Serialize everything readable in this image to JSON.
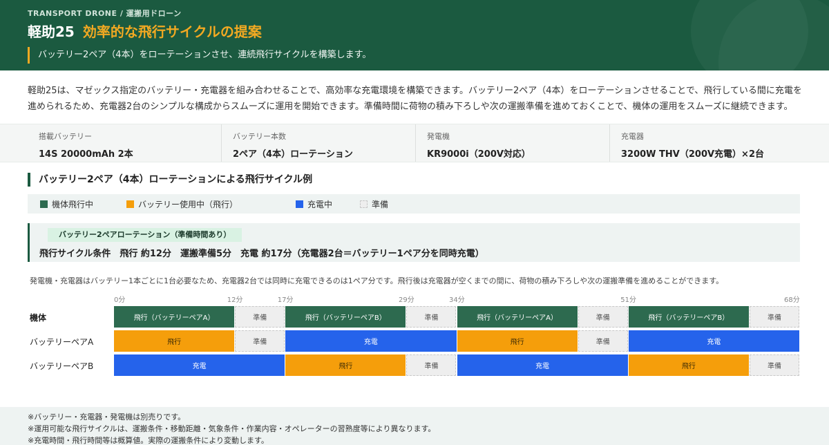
{
  "header": {
    "eyebrow": "TRANSPORT DRONE / 運搬用ドローン",
    "model": "軽助25",
    "headline": "効率的な飛行サイクルの提案",
    "subtitle": "バッテリー2ペア（4本）をローテーションさせ、連続飛行サイクルを構築します。"
  },
  "intro": {
    "text": "軽助25は、マゼックス指定のバッテリー・充電器を組み合わせることで、高効率な充電環境を構築できます。バッテリー2ペア（4本）をローテーションさせることで、飛行している間に充電を進められるため、充電器2台のシンプルな構成からスムーズに運用を開始できます。準備時間に荷物の積み下ろしや次の運搬準備を進めておくことで、機体の運用をスムーズに継続できます。"
  },
  "specs": [
    {
      "label": "搭載バッテリー",
      "value": "14S 20000mAh  2本"
    },
    {
      "label": "バッテリー本数",
      "value": "2ペア（4本）ローテーション"
    },
    {
      "label": "発電機",
      "value": "KR9000i（200V対応）"
    },
    {
      "label": "充電器",
      "value": "3200W THV（200V充電）×2台"
    }
  ],
  "section": {
    "title": "バッテリー2ペア（4本）ローテーションによる飛行サイクル例"
  },
  "legend": [
    {
      "label": "機体飛行中",
      "color": "#2d6a4f"
    },
    {
      "label": "バッテリー使用中（飛行）",
      "color": "#f59e0b"
    },
    {
      "label": "充電中",
      "color": "#2563eb"
    },
    {
      "label": "準備",
      "color": "#eeeeee"
    }
  ],
  "condition": {
    "badge": "バッテリー2ペアローテーション（準備時間あり）",
    "text": "飛行サイクル条件　飛行 約12分　運搬準備5分　充電 約17分（充電器2台＝バッテリー1ペア分を同時充電）"
  },
  "note": "発電機・充電器はバッテリー1本ごとに1台必要なため、充電器2台では同時に充電できるのは1ペア分です。飛行後は充電器が空くまでの間に、荷物の積み下ろしや次の運搬準備を進めることができます。",
  "timeline": {
    "total_minutes": 68,
    "ticks": [
      {
        "minute": 0,
        "label": "0分"
      },
      {
        "minute": 12,
        "label": "12分"
      },
      {
        "minute": 17,
        "label": "17分"
      },
      {
        "minute": 29,
        "label": "29分"
      },
      {
        "minute": 34,
        "label": "34分"
      },
      {
        "minute": 51,
        "label": "51分"
      },
      {
        "minute": 68,
        "label": "68分"
      }
    ],
    "rows": [
      {
        "label": "機体",
        "bold": true,
        "segments": [
          {
            "start": 0,
            "end": 12,
            "kind": "flight",
            "label": "飛行（バッテリーペアA）"
          },
          {
            "start": 12,
            "end": 17,
            "kind": "prep",
            "label": "準備"
          },
          {
            "start": 17,
            "end": 29,
            "kind": "flight",
            "label": "飛行（バッテリーペアB）"
          },
          {
            "start": 29,
            "end": 34,
            "kind": "prep",
            "label": "準備"
          },
          {
            "start": 34,
            "end": 46,
            "kind": "flight",
            "label": "飛行（バッテリーペアA）"
          },
          {
            "start": 46,
            "end": 51,
            "kind": "prep",
            "label": "準備"
          },
          {
            "start": 51,
            "end": 63,
            "kind": "flight",
            "label": "飛行（バッテリーペアB）"
          },
          {
            "start": 63,
            "end": 68,
            "kind": "prep",
            "label": "準備"
          }
        ]
      },
      {
        "label": "バッテリーペアA",
        "bold": false,
        "segments": [
          {
            "start": 0,
            "end": 12,
            "kind": "use",
            "label": "飛行"
          },
          {
            "start": 12,
            "end": 17,
            "kind": "prep",
            "label": "準備"
          },
          {
            "start": 17,
            "end": 34,
            "kind": "charge",
            "label": "充電"
          },
          {
            "start": 34,
            "end": 46,
            "kind": "use",
            "label": "飛行"
          },
          {
            "start": 46,
            "end": 51,
            "kind": "prep",
            "label": "準備"
          },
          {
            "start": 51,
            "end": 68,
            "kind": "charge",
            "label": "充電"
          }
        ]
      },
      {
        "label": "バッテリーペアB",
        "bold": false,
        "segments": [
          {
            "start": 0,
            "end": 17,
            "kind": "charge",
            "label": "充電"
          },
          {
            "start": 17,
            "end": 29,
            "kind": "use",
            "label": "飛行"
          },
          {
            "start": 29,
            "end": 34,
            "kind": "prep",
            "label": "準備"
          },
          {
            "start": 34,
            "end": 51,
            "kind": "charge",
            "label": "充電"
          },
          {
            "start": 51,
            "end": 63,
            "kind": "use",
            "label": "飛行"
          },
          {
            "start": 63,
            "end": 68,
            "kind": "prep",
            "label": "準備"
          }
        ]
      }
    ]
  },
  "footer": {
    "notes": [
      "※バッテリー・充電器・発電機は別売りです。",
      "※運用可能な飛行サイクルは、運搬条件・移動距離・気象条件・作業内容・オペレーターの習熟度等により異なります。",
      "※充電時間・飛行時間等は概算値。実際の運搬条件により変動します。"
    ]
  }
}
